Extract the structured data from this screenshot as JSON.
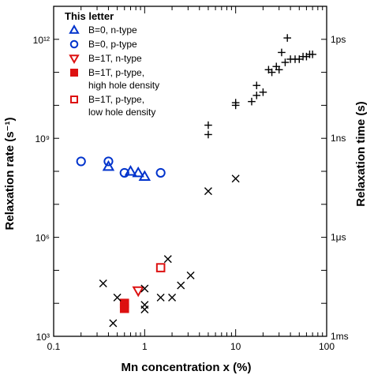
{
  "chart_data": {
    "type": "scatter",
    "xlabel": "Mn concentration x (%)",
    "ylabel": "Relaxation rate (s⁻¹)",
    "ylabel_right": "Relaxation time (s)",
    "x_scale": "log",
    "y_scale": "log",
    "xlim": [
      0.1,
      100
    ],
    "ylim": [
      1000,
      10000000000000.0
    ],
    "x_tick_values": [
      0.1,
      1,
      10,
      100
    ],
    "x_tick_labels": [
      "0.1",
      "1",
      "10",
      "100"
    ],
    "y_tick_values": [
      1000,
      1000000,
      1000000000,
      1000000000000
    ],
    "y_tick_labels": [
      "10³",
      "10⁶",
      "10⁹",
      "10¹²"
    ],
    "right_tick_values": [
      1000,
      1000000,
      1000000000,
      1000000000000
    ],
    "right_tick_labels": [
      "1ms",
      "1μs",
      "1ns",
      "1ps"
    ],
    "grid": false,
    "legend": {
      "title": "This letter",
      "position": "top-left",
      "entries": [
        {
          "lines": [
            "B=0, n-type"
          ],
          "marker": "triangle-up",
          "color": "#0033cc",
          "filled": false
        },
        {
          "lines": [
            "B=0, p-type"
          ],
          "marker": "circle",
          "color": "#0033cc",
          "filled": false
        },
        {
          "lines": [
            "B=1T, n-type"
          ],
          "marker": "triangle-down",
          "color": "#dd1111",
          "filled": false
        },
        {
          "lines": [
            "B=1T, p-type,",
            "high hole density"
          ],
          "marker": "square",
          "color": "#dd1111",
          "filled": true
        },
        {
          "lines": [
            "B=1T, p-type,",
            "low hole density"
          ],
          "marker": "square",
          "color": "#dd1111",
          "filled": false
        }
      ]
    },
    "series": [
      {
        "marker": "triangle-up",
        "color": "#0033cc",
        "filled": false,
        "points": [
          [
            0.4,
            140000000.0
          ],
          [
            0.7,
            100000000.0
          ],
          [
            0.85,
            90000000.0
          ],
          [
            1.0,
            70000000.0
          ]
        ]
      },
      {
        "marker": "circle",
        "color": "#0033cc",
        "filled": false,
        "points": [
          [
            0.2,
            200000000.0
          ],
          [
            0.4,
            200000000.0
          ],
          [
            0.6,
            90000000.0
          ],
          [
            1.5,
            90000000.0
          ]
        ]
      },
      {
        "marker": "triangle-down",
        "color": "#dd1111",
        "filled": false,
        "points": [
          [
            0.85,
            24000.0
          ]
        ]
      },
      {
        "marker": "square",
        "color": "#dd1111",
        "filled": true,
        "points": [
          [
            0.6,
            10000.0
          ],
          [
            0.6,
            7000.0
          ]
        ]
      },
      {
        "marker": "square",
        "color": "#dd1111",
        "filled": false,
        "points": [
          [
            1.5,
            120000.0
          ]
        ]
      },
      {
        "marker": "x",
        "color": "#000000",
        "filled": false,
        "points": [
          [
            0.35,
            40000.0
          ],
          [
            0.5,
            15000.0
          ],
          [
            0.45,
            2500.0
          ],
          [
            1.0,
            28000.0
          ],
          [
            1.0,
            9000.0
          ],
          [
            1.0,
            6500.0
          ],
          [
            1.5,
            15000.0
          ],
          [
            1.8,
            220000.0
          ],
          [
            2.0,
            15000.0
          ],
          [
            2.5,
            35000.0
          ],
          [
            3.2,
            70000.0
          ],
          [
            5.0,
            25000000.0
          ],
          [
            10.0,
            60000000.0
          ]
        ]
      },
      {
        "marker": "plus",
        "color": "#000000",
        "filled": false,
        "points": [
          [
            5.0,
            1300000000.0
          ],
          [
            5.0,
            2500000000.0
          ],
          [
            10.0,
            10000000000.0
          ],
          [
            10.0,
            12000000000.0
          ],
          [
            15.0,
            13000000000.0
          ],
          [
            17.0,
            20000000000.0
          ],
          [
            17.0,
            40000000000.0
          ],
          [
            20.0,
            25000000000.0
          ],
          [
            23.0,
            120000000000.0
          ],
          [
            25.0,
            100000000000.0
          ],
          [
            28.0,
            150000000000.0
          ],
          [
            30.0,
            120000000000.0
          ],
          [
            32.0,
            400000000000.0
          ],
          [
            35.0,
            200000000000.0
          ],
          [
            37.0,
            1100000000000.0
          ],
          [
            40.0,
            250000000000.0
          ],
          [
            45.0,
            250000000000.0
          ],
          [
            50.0,
            250000000000.0
          ],
          [
            55.0,
            300000000000.0
          ],
          [
            60.0,
            300000000000.0
          ],
          [
            65.0,
            350000000000.0
          ],
          [
            70.0,
            350000000000.0
          ]
        ]
      }
    ]
  }
}
